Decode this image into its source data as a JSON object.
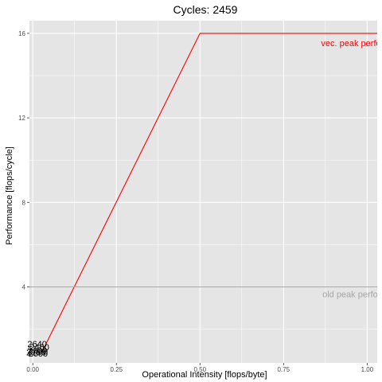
{
  "chart_data": {
    "type": "line",
    "title": "Cycles:  2459",
    "xlabel": "Operational Intensity [flops/byte]",
    "ylabel": "Performance [flops/cycle]",
    "xlim": [
      -0.01,
      1.03
    ],
    "ylim": [
      0.4,
      16.6
    ],
    "x_ticks": [
      0.0,
      0.25,
      0.5,
      0.75,
      1.0
    ],
    "x_tick_labels": [
      "0.00",
      "0.25",
      "0.50",
      "0.75",
      "1.00"
    ],
    "y_ticks": [
      4,
      8,
      12,
      16
    ],
    "y_tick_labels": [
      "4",
      "8",
      "12",
      "16"
    ],
    "grid": true,
    "colors": {
      "panel": "#e5e5e5",
      "grid": "#ffffff",
      "roofline": "#ff0000",
      "old_peak": "#a6a6a6",
      "points": "#000000"
    },
    "series": [
      {
        "kind": "roofline",
        "x": [
          0.03,
          0.5,
          1.06
        ],
        "y": [
          1.0,
          16.0,
          16.0
        ]
      },
      {
        "kind": "hline",
        "y": 4.0
      }
    ],
    "annotations": [
      {
        "text": "vec. peak perfo",
        "x": 0.862,
        "y": 15.55,
        "color": "#ff0000"
      },
      {
        "text": "old peak perfor",
        "x": 0.866,
        "y": 3.65,
        "color": "#a6a6a6"
      }
    ],
    "points": [
      {
        "label": "2160",
        "x": 0.01,
        "y": 0.9
      },
      {
        "label": "2100",
        "x": 0.013,
        "y": 1.0
      },
      {
        "label": "2400",
        "x": 0.016,
        "y": 0.95
      },
      {
        "label": "2460",
        "x": 0.02,
        "y": 1.15
      },
      {
        "label": "2640",
        "x": 0.013,
        "y": 1.3
      },
      {
        "label": "2600",
        "x": 0.016,
        "y": 0.85
      }
    ]
  }
}
